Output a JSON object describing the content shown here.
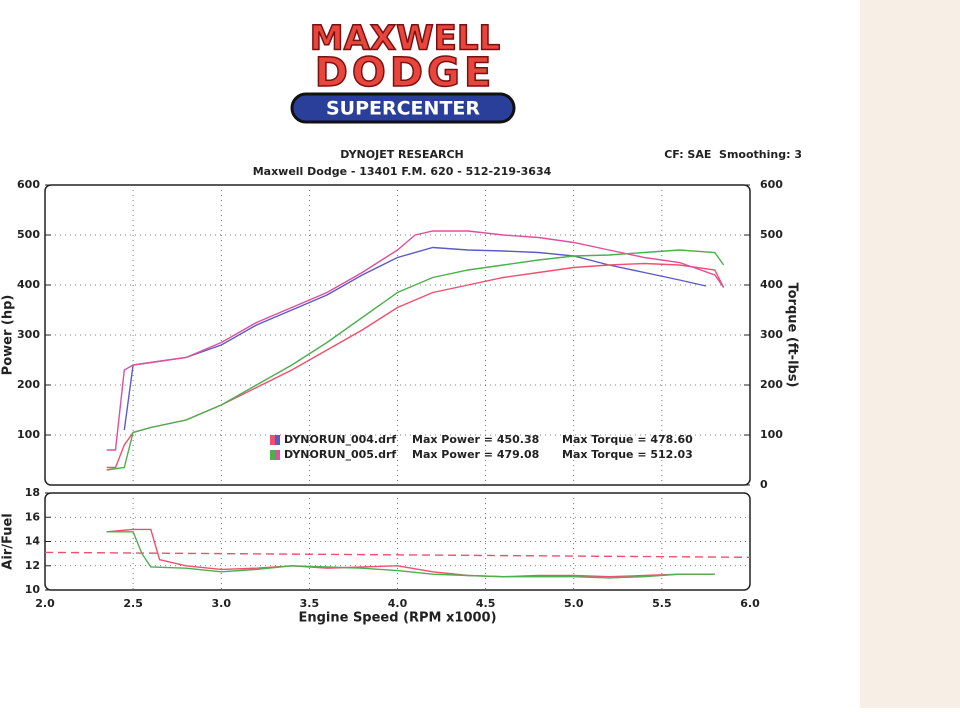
{
  "logo": {
    "line1": "MAXWELL",
    "line2": "DODGE",
    "line3": "SUPERCENTER"
  },
  "header": {
    "title": "DYNOJET RESEARCH",
    "address": "Maxwell Dodge - 13401 F.M. 620 - 512-219-3634",
    "settings": "CF: SAE  Smoothing: 3"
  },
  "chart_data": [
    {
      "type": "line",
      "y_label": "Power (hp)",
      "y2_label": "Torque (ft-lbs)",
      "xlim": [
        2.0,
        6.0
      ],
      "ylim": [
        0,
        600
      ],
      "yticks": [
        100,
        200,
        300,
        400,
        500,
        600
      ],
      "y2lim": [
        0,
        600
      ],
      "y2ticks": [
        0,
        100,
        200,
        300,
        400,
        500,
        600
      ],
      "grid": true,
      "series": [
        {
          "color": "#5b5bc8",
          "axis": "y2",
          "x": [
            2.45,
            2.5,
            2.6,
            2.8,
            3.0,
            3.2,
            3.4,
            3.6,
            3.8,
            4.0,
            4.2,
            4.4,
            4.6,
            4.8,
            5.0,
            5.2,
            5.4,
            5.6,
            5.75
          ],
          "values": [
            110,
            240,
            245,
            255,
            280,
            320,
            350,
            380,
            420,
            455,
            475,
            470,
            468,
            465,
            458,
            440,
            425,
            410,
            398
          ]
        },
        {
          "color": "#f0506e",
          "x": [
            2.35,
            2.4,
            2.45,
            2.5,
            2.6,
            2.8,
            3.0,
            3.2,
            3.4,
            3.6,
            3.8,
            4.0,
            4.2,
            4.4,
            4.6,
            4.8,
            5.0,
            5.2,
            5.4,
            5.6,
            5.8,
            5.85
          ],
          "values": [
            35,
            35,
            80,
            105,
            115,
            130,
            160,
            195,
            230,
            270,
            310,
            355,
            385,
            400,
            415,
            425,
            435,
            440,
            443,
            440,
            430,
            395
          ]
        },
        {
          "color": "#e0509a",
          "axis": "y2",
          "x": [
            2.35,
            2.4,
            2.45,
            2.5,
            2.6,
            2.8,
            3.0,
            3.2,
            3.4,
            3.6,
            3.8,
            4.0,
            4.1,
            4.2,
            4.4,
            4.6,
            4.8,
            5.0,
            5.2,
            5.4,
            5.6,
            5.8,
            5.85
          ],
          "values": [
            70,
            70,
            230,
            240,
            245,
            255,
            285,
            325,
            355,
            385,
            425,
            470,
            500,
            508,
            508,
            500,
            495,
            485,
            470,
            455,
            445,
            420,
            395
          ]
        },
        {
          "color": "#4caf50",
          "x": [
            2.35,
            2.45,
            2.5,
            2.6,
            2.8,
            3.0,
            3.2,
            3.4,
            3.6,
            3.8,
            4.0,
            4.2,
            4.4,
            4.6,
            4.8,
            5.0,
            5.2,
            5.4,
            5.6,
            5.8,
            5.85
          ],
          "values": [
            30,
            35,
            105,
            115,
            130,
            160,
            200,
            240,
            285,
            335,
            385,
            415,
            430,
            440,
            450,
            458,
            460,
            465,
            470,
            465,
            440
          ]
        }
      ],
      "legend": [
        {
          "name": "DYNORUN_004.drf",
          "power": "Max Power = 450.38",
          "torque": "Max Torque = 478.60"
        },
        {
          "name": "DYNORUN_005.drf",
          "power": "Max Power = 479.08",
          "torque": "Max Torque = 512.03"
        }
      ]
    },
    {
      "type": "line",
      "y_label": "Air/Fuel",
      "x_label": "Engine Speed (RPM x1000)",
      "xlim": [
        2.0,
        6.0
      ],
      "xticks": [
        {
          "value": 2.0,
          "label": "2.0"
        },
        2.5,
        {
          "value": 3.0,
          "label": "3.0"
        },
        3.5,
        {
          "value": 4.0,
          "label": "4.0"
        },
        4.5,
        {
          "value": 5.0,
          "label": "5.0"
        },
        5.5,
        {
          "value": 6.0,
          "label": "6.0"
        }
      ],
      "ylim": [
        10,
        18
      ],
      "yticks": [
        10,
        12,
        14,
        16,
        18
      ],
      "grid": true,
      "series": [
        {
          "color": "#f0506e",
          "dashed": true,
          "x": [
            2.0,
            6.0
          ],
          "values": [
            13.1,
            12.7
          ]
        },
        {
          "color": "#f0506e",
          "x": [
            2.35,
            2.5,
            2.6,
            2.65,
            2.8,
            3.0,
            3.2,
            3.4,
            3.6,
            3.8,
            4.0,
            4.2,
            4.4,
            4.6,
            4.8,
            5.0,
            5.2,
            5.4,
            5.6,
            5.8
          ],
          "values": [
            14.8,
            15.0,
            15.0,
            12.5,
            12.0,
            11.7,
            11.8,
            12.0,
            11.8,
            11.9,
            12.0,
            11.5,
            11.2,
            11.1,
            11.2,
            11.2,
            11.1,
            11.2,
            11.3,
            11.3
          ]
        },
        {
          "color": "#4caf50",
          "x": [
            2.35,
            2.5,
            2.55,
            2.6,
            2.8,
            3.0,
            3.2,
            3.4,
            3.6,
            3.8,
            4.0,
            4.2,
            4.4,
            4.6,
            4.8,
            5.0,
            5.2,
            5.4,
            5.6,
            5.8
          ],
          "values": [
            14.8,
            14.8,
            13.0,
            11.9,
            11.8,
            11.5,
            11.7,
            12.0,
            11.9,
            11.8,
            11.6,
            11.3,
            11.2,
            11.1,
            11.1,
            11.1,
            11.0,
            11.1,
            11.3,
            11.3
          ]
        }
      ]
    }
  ]
}
